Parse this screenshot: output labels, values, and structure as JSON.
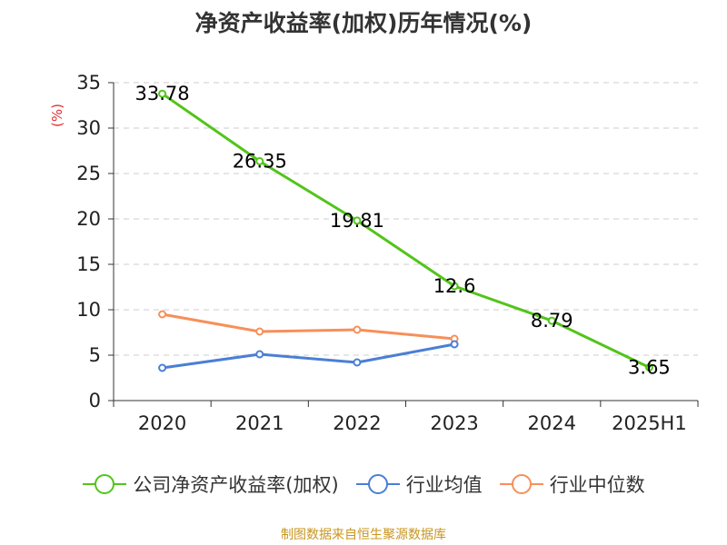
{
  "chart_data": {
    "type": "line",
    "title": "净资产收益率(加权)历年情况(%)",
    "ylabel": "(%)",
    "categories": [
      "2020",
      "2021",
      "2022",
      "2023",
      "2024",
      "2025H1"
    ],
    "ylim": [
      0,
      35
    ],
    "yticks": [
      0,
      5,
      10,
      15,
      20,
      25,
      30,
      35
    ],
    "grid": true,
    "legend_position": "bottom",
    "series": [
      {
        "name": "公司净资产收益率(加权)",
        "color": "#52c41a",
        "values": [
          33.78,
          26.35,
          19.81,
          12.6,
          8.79,
          3.65
        ],
        "value_labels": [
          "33.78",
          "26.35",
          "19.81",
          "12.6",
          "8.79",
          "3.65"
        ],
        "show_labels": true
      },
      {
        "name": "行业均值",
        "color": "#4a7fd4",
        "values": [
          3.6,
          5.1,
          4.2,
          6.2,
          null,
          null
        ],
        "show_labels": false
      },
      {
        "name": "行业中位数",
        "color": "#f78f5a",
        "values": [
          9.5,
          7.6,
          7.8,
          6.8,
          null,
          null
        ],
        "show_labels": false
      }
    ]
  },
  "colors": {
    "title": "#333333",
    "axis": "#333333",
    "grid": "#cccccc",
    "ylabel": "#e03030",
    "source": "#c8961e"
  },
  "source_note": "制图数据来自恒生聚源数据库"
}
